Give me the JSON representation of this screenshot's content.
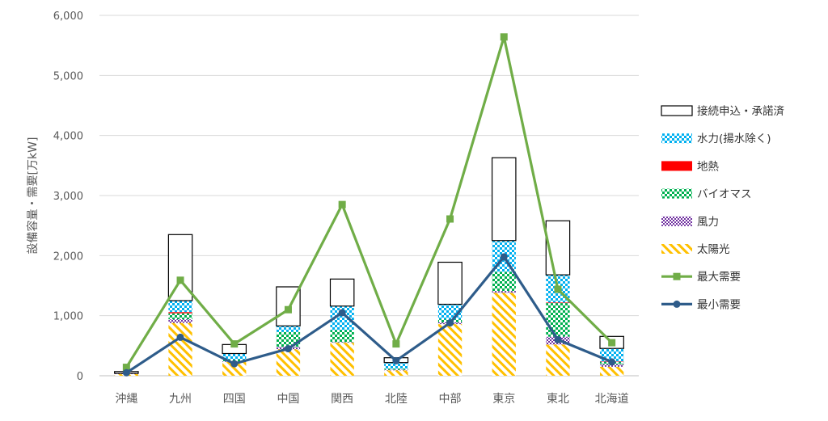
{
  "chart_data": {
    "type": "bar",
    "stacked": true,
    "title": "",
    "xlabel": "",
    "ylabel": "設備容量・需要[万kW]",
    "ylim": [
      0,
      6000
    ],
    "yticks": [
      "0",
      "1,000",
      "2,000",
      "3,000",
      "4,000",
      "5,000",
      "6,000"
    ],
    "grid": true,
    "legend_position": "right",
    "categories": [
      "沖縄",
      "九州",
      "四国",
      "中国",
      "関西",
      "北陸",
      "中部",
      "東京",
      "東北",
      "北海道"
    ],
    "series": [
      {
        "name": "太陽光",
        "kind": "bar",
        "pattern": "diagonal-hatch",
        "color": "#FFC000",
        "values": [
          30,
          880,
          230,
          440,
          550,
          90,
          860,
          1380,
          520,
          150
        ]
      },
      {
        "name": "風力",
        "kind": "bar",
        "pattern": "small-check",
        "color": "#7030A0",
        "values": [
          5,
          60,
          10,
          40,
          10,
          10,
          30,
          30,
          130,
          40
        ]
      },
      {
        "name": "バイオマス",
        "kind": "bar",
        "pattern": "check",
        "color": "#00B050",
        "values": [
          5,
          100,
          30,
          250,
          200,
          20,
          50,
          320,
          560,
          40
        ]
      },
      {
        "name": "地熱",
        "kind": "bar",
        "pattern": "solid",
        "color": "#FF0000",
        "values": [
          0,
          20,
          0,
          0,
          0,
          0,
          0,
          0,
          10,
          5
        ]
      },
      {
        "name": "水力(揚水除く)",
        "kind": "bar",
        "pattern": "check",
        "color": "#00B0F0",
        "values": [
          0,
          190,
          100,
          100,
          400,
          100,
          250,
          520,
          460,
          220
        ]
      },
      {
        "name": "接続申込・承諾済",
        "kind": "bar",
        "pattern": "outline",
        "color": "#000000",
        "values": [
          30,
          1100,
          150,
          650,
          450,
          80,
          700,
          1380,
          900,
          200
        ]
      },
      {
        "name": "最大需要",
        "kind": "line",
        "marker": "square",
        "color": "#70AD47",
        "values": [
          140,
          1590,
          530,
          1100,
          2850,
          530,
          2610,
          5640,
          1440,
          550
        ]
      },
      {
        "name": "最小需要",
        "kind": "line",
        "marker": "circle",
        "color": "#2E5C8A",
        "values": [
          50,
          640,
          200,
          450,
          1050,
          250,
          880,
          1980,
          600,
          230
        ]
      }
    ],
    "legend_order": [
      "接続申込・承諾済",
      "水力(揚水除く)",
      "地熱",
      "バイオマス",
      "風力",
      "太陽光",
      "最大需要",
      "最小需要"
    ]
  }
}
